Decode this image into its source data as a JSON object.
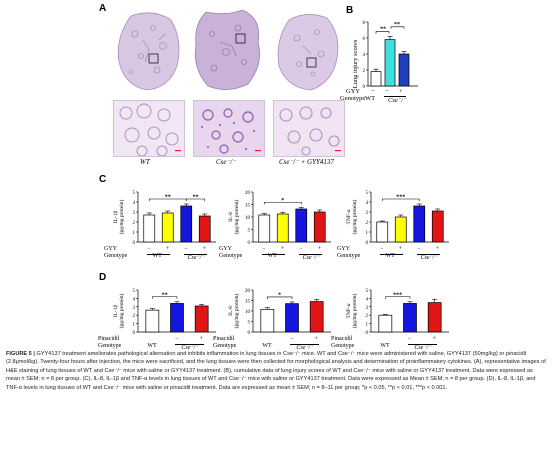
{
  "panel_labels": {
    "a": "A",
    "b": "B",
    "c": "C",
    "d": "D"
  },
  "histology": {
    "labels": [
      "WT",
      "Cse⁻/⁻",
      "Cse⁻/⁻ + GYY4137"
    ]
  },
  "panel_b": {
    "ylabel": "Lung injury scores",
    "treatment_row_label": "GYY",
    "genotype_row_label": "Genotype",
    "treatment_marks": [
      "−",
      "−",
      "+"
    ],
    "genotype_wt": "WT",
    "genotype_cse": "Cse⁻/⁻",
    "sig": [
      "**",
      "**"
    ]
  },
  "panel_c": {
    "row_label_1": "GYY",
    "row_label_2": "Genotype",
    "treatment_marks": [
      "−",
      "+",
      "−",
      "+"
    ],
    "genotype_wt": "WT",
    "genotype_cse": "Cse⁻/⁻"
  },
  "panel_d": {
    "row_label": "Pinacidil",
    "row_label_2": "Genotype",
    "treatment_marks": [
      "−",
      "+"
    ],
    "genotype_wt": "WT",
    "genotype_cse": "Cse⁻/⁻"
  },
  "chart_data": [
    {
      "id": "B",
      "type": "bar",
      "ylabel": "Lung injury scores",
      "ylim": [
        0,
        8
      ],
      "yticks": [
        0,
        2,
        4,
        6,
        8
      ],
      "categories": [
        "WT",
        "Cse⁻/⁻",
        "Cse⁻/⁻ + GYY"
      ],
      "values": [
        1.8,
        5.8,
        4.0
      ],
      "errors": [
        0.3,
        0.4,
        0.3
      ],
      "colors": [
        "#ffffff",
        "#3fe0e0",
        "#1f3fbf"
      ],
      "sig": [
        {
          "from": 0,
          "to": 1,
          "label": "**"
        },
        {
          "from": 1,
          "to": 2,
          "label": "**"
        }
      ]
    },
    {
      "id": "C1",
      "type": "bar",
      "ylabel": "IL-1β (pg/mg protein)",
      "ylim": [
        0,
        5
      ],
      "yticks": [
        0,
        1,
        2,
        3,
        4,
        5
      ],
      "values": [
        2.7,
        2.9,
        3.6,
        2.6
      ],
      "errors": [
        0.2,
        0.2,
        0.2,
        0.2
      ],
      "colors": [
        "#ffffff",
        "#ffff00",
        "#1515e0",
        "#e01515"
      ],
      "sig": [
        {
          "from": 0,
          "to": 2,
          "label": "**"
        },
        {
          "from": 2,
          "to": 3,
          "label": "**"
        }
      ]
    },
    {
      "id": "C2",
      "type": "bar",
      "ylabel": "IL-8 (pg/mg protein)",
      "ylim": [
        0,
        20
      ],
      "yticks": [
        0,
        5,
        10,
        15,
        20
      ],
      "values": [
        10.8,
        11.2,
        13.2,
        12.0
      ],
      "errors": [
        0.6,
        0.7,
        0.7,
        0.8
      ],
      "colors": [
        "#ffffff",
        "#ffff00",
        "#1515e0",
        "#e01515"
      ],
      "sig": [
        {
          "from": 0,
          "to": 2,
          "label": "*"
        }
      ]
    },
    {
      "id": "C3",
      "type": "bar",
      "ylabel": "TNF-α (pg/mg protein)",
      "ylim": [
        0,
        5
      ],
      "yticks": [
        0,
        1,
        2,
        3,
        4,
        5
      ],
      "values": [
        2.0,
        2.5,
        3.6,
        3.1
      ],
      "errors": [
        0.1,
        0.2,
        0.2,
        0.2
      ],
      "colors": [
        "#ffffff",
        "#ffff00",
        "#1515e0",
        "#e01515"
      ],
      "sig": [
        {
          "from": 0,
          "to": 2,
          "label": "***"
        }
      ]
    },
    {
      "id": "D1",
      "type": "bar",
      "ylabel": "IL-1β (pg/mg protein)",
      "ylim": [
        0,
        5
      ],
      "yticks": [
        0,
        1,
        2,
        3,
        4,
        5
      ],
      "values": [
        2.6,
        3.4,
        3.1
      ],
      "errors": [
        0.2,
        0.2,
        0.2
      ],
      "colors": [
        "#ffffff",
        "#1515e0",
        "#e01515"
      ],
      "sig": [
        {
          "from": 0,
          "to": 1,
          "label": "**"
        }
      ]
    },
    {
      "id": "D2",
      "type": "bar",
      "ylabel": "IL-8 (pg/mg protein)",
      "ylim": [
        0,
        20
      ],
      "yticks": [
        0,
        5,
        10,
        15,
        20
      ],
      "values": [
        10.8,
        13.5,
        14.5
      ],
      "errors": [
        0.8,
        0.8,
        1.0
      ],
      "colors": [
        "#ffffff",
        "#1515e0",
        "#e01515"
      ],
      "sig": [
        {
          "from": 0,
          "to": 1,
          "label": "*"
        }
      ]
    },
    {
      "id": "D3",
      "type": "bar",
      "ylabel": "TNF-α (pg/mg protein)",
      "ylim": [
        0,
        5
      ],
      "yticks": [
        0,
        1,
        2,
        3,
        4,
        5
      ],
      "values": [
        2.0,
        3.4,
        3.5
      ],
      "errors": [
        0.1,
        0.2,
        0.4
      ],
      "colors": [
        "#ffffff",
        "#1515e0",
        "#e01515"
      ],
      "sig": [
        {
          "from": 0,
          "to": 1,
          "label": "***"
        }
      ]
    }
  ],
  "caption": {
    "lead": "FIGURE 5 |",
    "text": "GYY4137 treatment ameliorates pathological alternation and inhibits inflammation in lung tissues in Cse⁻/⁻ mice. WT and Cse⁻/⁻ mice were administered with saline, GYY4137 (50mg/kg) or pinacidil (2.8μmol/kg). Twenty-four hours after injection, the mice were sacrificed, and the lung tissues were then collected for morphological analysis and determination of proinflammatory cytokines. (A), representative images of H&E staining of lung tissues of WT and Cse⁻/⁻ mice with saline or GYY4137 treatment. (B), cumulative data of lung injury scores of WT and Cse⁻/⁻ mice with saline or GYY4137 treatment. Data were expressed as mean ± SEM; n = 8 per group. (C), IL-8, IL-1β and TNF-α levels in lung tissues of WT and Cse⁻/⁻ mice with saline or GYY4137 treatment. Data were expressed as Mean ± SEM; n = 8 per group. (D), IL-8, IL-1β, and TNF-α levels in lung tissues of WT and Cse⁻/⁻ mice with saline or pinacidil treatment. Data are expressed as mean ± SEM; n = 8–11 per group; *p < 0.05, **p < 0.01, ***p < 0.001."
  }
}
